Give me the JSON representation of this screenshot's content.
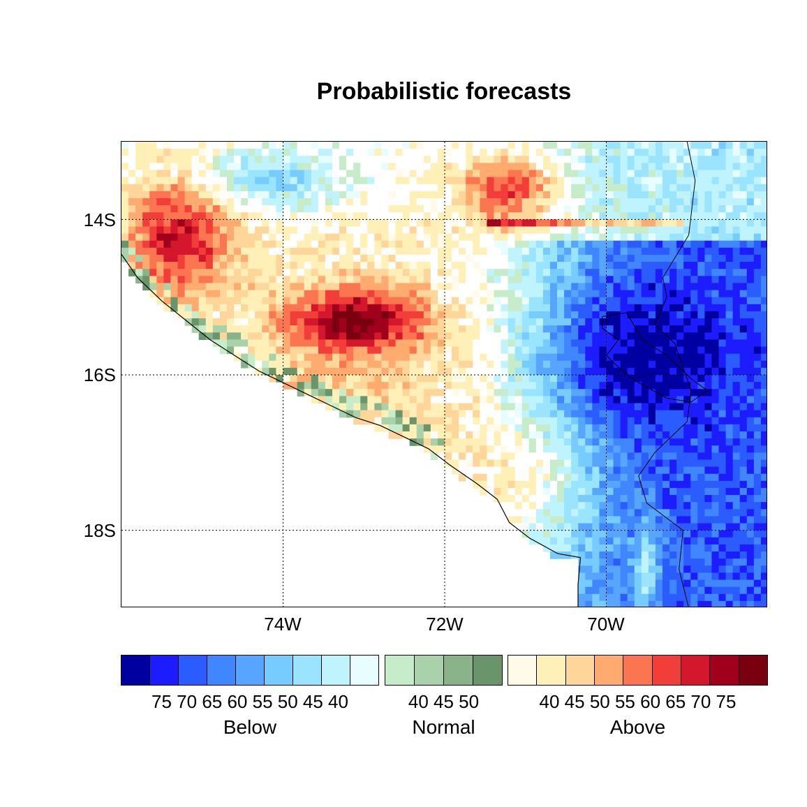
{
  "title": "Probabilistic forecasts",
  "map": {
    "lat_range": [
      -19,
      -13
    ],
    "lon_range": [
      -76,
      -68
    ],
    "lat_ticks": [
      {
        "value": -14,
        "label": "14S"
      },
      {
        "value": -16,
        "label": "16S"
      },
      {
        "value": -18,
        "label": "18S"
      }
    ],
    "lon_ticks": [
      {
        "value": -74,
        "label": "74W"
      },
      {
        "value": -72,
        "label": "72W"
      },
      {
        "value": -70,
        "label": "70W"
      }
    ],
    "gridlines": "dotted"
  },
  "legend": {
    "below": {
      "label": "Below",
      "ticks": "75 70 65 60 55 50 45 40",
      "colors": [
        "#0000a0",
        "#1c1cff",
        "#2a5cff",
        "#3f86ff",
        "#56a5ff",
        "#76ccff",
        "#9ae4ff",
        "#bff4ff",
        "#e8fdff"
      ]
    },
    "normal": {
      "label": "Normal",
      "ticks": "40 45 50",
      "colors": [
        "#c6ecca",
        "#a9d2aa",
        "#8ab38a",
        "#6a946a"
      ]
    },
    "above": {
      "label": "Above",
      "ticks": "40 45 50 55 60 65 70 75",
      "colors": [
        "#fffbe8",
        "#fff0b8",
        "#ffd69a",
        "#ffab70",
        "#fb7650",
        "#f23d38",
        "#d4172c",
        "#a0001c",
        "#7a0010"
      ]
    }
  }
}
